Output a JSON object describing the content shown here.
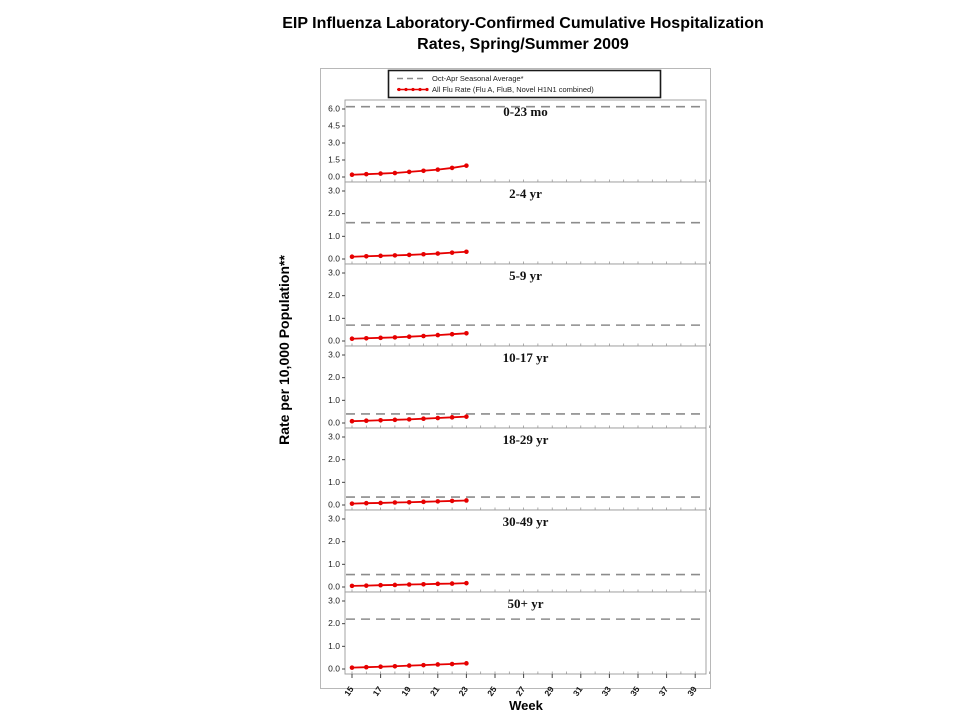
{
  "title": {
    "line1": "EIP Influenza Laboratory-Confirmed Cumulative Hospitalization",
    "line2": "Rates, Spring/Summer 2009"
  },
  "axes": {
    "y_label": "Rate per 10,000 Population**",
    "x_label": "Week"
  },
  "chart_data": {
    "type": "line",
    "title": "EIP Influenza Laboratory-Confirmed Cumulative Hospitalization Rates, Spring/Summer 2009",
    "xlabel": "Week",
    "ylabel": "Rate per 10,000 Population**",
    "x_ticks": [
      15,
      17,
      19,
      21,
      23,
      25,
      27,
      29,
      31,
      33,
      35,
      37,
      39
    ],
    "x_range": [
      15,
      40
    ],
    "weeks": [
      15,
      16,
      17,
      18,
      19,
      20,
      21,
      22,
      23
    ],
    "colors": {
      "seasonal": "#8c8c8c",
      "flu": "#e60000"
    },
    "legend": [
      {
        "label": "Oct-Apr Seasonal Average*",
        "color": "#8c8c8c",
        "style": "dashed"
      },
      {
        "label": "All Flu Rate (Flu A, FluB, Novel H1N1 combined)",
        "color": "#e60000",
        "style": "line-markers"
      }
    ],
    "panels": [
      {
        "group": "0-23 mo",
        "yticks": [
          0.0,
          1.5,
          3.0,
          4.5,
          6.0
        ],
        "ymax_tick": 6.0,
        "seasonal_average": 6.2,
        "flu_rate": [
          0.2,
          0.25,
          0.3,
          0.35,
          0.45,
          0.55,
          0.65,
          0.8,
          1.0
        ]
      },
      {
        "group": "2-4 yr",
        "yticks": [
          0.0,
          1.0,
          2.0,
          3.0
        ],
        "ymax_tick": 3.0,
        "seasonal_average": 1.6,
        "flu_rate": [
          0.1,
          0.12,
          0.14,
          0.16,
          0.18,
          0.21,
          0.24,
          0.28,
          0.32
        ]
      },
      {
        "group": "5-9 yr",
        "yticks": [
          0.0,
          1.0,
          2.0,
          3.0
        ],
        "ymax_tick": 3.0,
        "seasonal_average": 0.7,
        "flu_rate": [
          0.1,
          0.12,
          0.14,
          0.16,
          0.19,
          0.22,
          0.26,
          0.3,
          0.34
        ]
      },
      {
        "group": "10-17 yr",
        "yticks": [
          0.0,
          1.0,
          2.0,
          3.0
        ],
        "ymax_tick": 3.0,
        "seasonal_average": 0.4,
        "flu_rate": [
          0.08,
          0.1,
          0.12,
          0.14,
          0.16,
          0.19,
          0.22,
          0.25,
          0.28
        ]
      },
      {
        "group": "18-29 yr",
        "yticks": [
          0.0,
          1.0,
          2.0,
          3.0
        ],
        "ymax_tick": 3.0,
        "seasonal_average": 0.35,
        "flu_rate": [
          0.06,
          0.08,
          0.09,
          0.11,
          0.12,
          0.14,
          0.16,
          0.18,
          0.2
        ]
      },
      {
        "group": "30-49 yr",
        "yticks": [
          0.0,
          1.0,
          2.0,
          3.0
        ],
        "ymax_tick": 3.0,
        "seasonal_average": 0.55,
        "flu_rate": [
          0.05,
          0.06,
          0.08,
          0.09,
          0.11,
          0.12,
          0.14,
          0.15,
          0.17
        ]
      },
      {
        "group": "50+ yr",
        "yticks": [
          0.0,
          1.0,
          2.0,
          3.0
        ],
        "ymax_tick": 3.0,
        "seasonal_average": 2.2,
        "flu_rate": [
          0.06,
          0.08,
          0.1,
          0.12,
          0.15,
          0.17,
          0.2,
          0.22,
          0.25
        ]
      }
    ]
  }
}
